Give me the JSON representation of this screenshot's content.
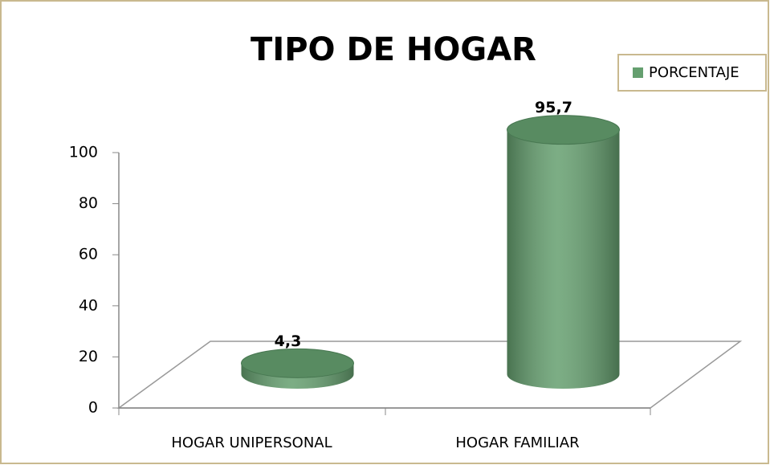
{
  "chart_data": {
    "type": "bar",
    "title": "TIPO DE HOGAR",
    "categories": [
      "HOGAR UNIPERSONAL",
      "HOGAR FAMILIAR"
    ],
    "series": [
      {
        "name": "PORCENTAJE",
        "color": "#659f6f",
        "values": [
          4.3,
          95.7
        ],
        "value_labels": [
          "4,3",
          "95,7"
        ]
      }
    ],
    "ylim": [
      0,
      100
    ],
    "yticks": [
      0,
      20,
      40,
      60,
      80,
      100
    ],
    "grid": false,
    "legend": "top-right"
  }
}
